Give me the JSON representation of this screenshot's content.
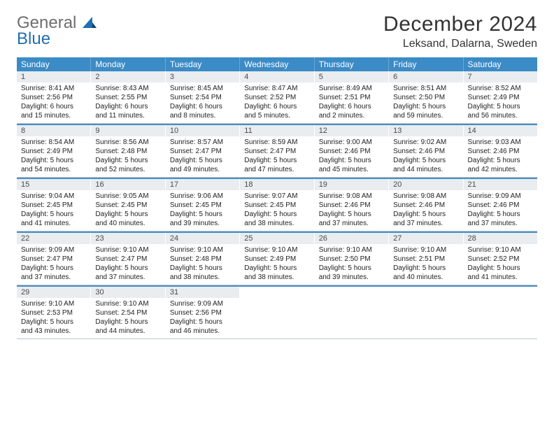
{
  "logo": {
    "line1": "General",
    "line2": "Blue"
  },
  "title": "December 2024",
  "location": "Leksand, Dalarna, Sweden",
  "styles": {
    "header_bg": "#3b8bc6",
    "header_text": "#ffffff",
    "row_sep": "#4a8fc3",
    "daynum_bg": "#e9edf0",
    "daynum_text": "#4a4a4a",
    "body_text": "#222222",
    "page_bg": "#ffffff",
    "title_fontsize": 30,
    "location_fontsize": 16,
    "dow_fontsize": 12,
    "daynum_fontsize": 11,
    "body_fontsize": 10
  },
  "daysOfWeek": [
    "Sunday",
    "Monday",
    "Tuesday",
    "Wednesday",
    "Thursday",
    "Friday",
    "Saturday"
  ],
  "weeks": [
    [
      {
        "n": "1",
        "sunrise": "Sunrise: 8:41 AM",
        "sunset": "Sunset: 2:56 PM",
        "daylight": "Daylight: 6 hours and 15 minutes."
      },
      {
        "n": "2",
        "sunrise": "Sunrise: 8:43 AM",
        "sunset": "Sunset: 2:55 PM",
        "daylight": "Daylight: 6 hours and 11 minutes."
      },
      {
        "n": "3",
        "sunrise": "Sunrise: 8:45 AM",
        "sunset": "Sunset: 2:54 PM",
        "daylight": "Daylight: 6 hours and 8 minutes."
      },
      {
        "n": "4",
        "sunrise": "Sunrise: 8:47 AM",
        "sunset": "Sunset: 2:52 PM",
        "daylight": "Daylight: 6 hours and 5 minutes."
      },
      {
        "n": "5",
        "sunrise": "Sunrise: 8:49 AM",
        "sunset": "Sunset: 2:51 PM",
        "daylight": "Daylight: 6 hours and 2 minutes."
      },
      {
        "n": "6",
        "sunrise": "Sunrise: 8:51 AM",
        "sunset": "Sunset: 2:50 PM",
        "daylight": "Daylight: 5 hours and 59 minutes."
      },
      {
        "n": "7",
        "sunrise": "Sunrise: 8:52 AM",
        "sunset": "Sunset: 2:49 PM",
        "daylight": "Daylight: 5 hours and 56 minutes."
      }
    ],
    [
      {
        "n": "8",
        "sunrise": "Sunrise: 8:54 AM",
        "sunset": "Sunset: 2:49 PM",
        "daylight": "Daylight: 5 hours and 54 minutes."
      },
      {
        "n": "9",
        "sunrise": "Sunrise: 8:56 AM",
        "sunset": "Sunset: 2:48 PM",
        "daylight": "Daylight: 5 hours and 52 minutes."
      },
      {
        "n": "10",
        "sunrise": "Sunrise: 8:57 AM",
        "sunset": "Sunset: 2:47 PM",
        "daylight": "Daylight: 5 hours and 49 minutes."
      },
      {
        "n": "11",
        "sunrise": "Sunrise: 8:59 AM",
        "sunset": "Sunset: 2:47 PM",
        "daylight": "Daylight: 5 hours and 47 minutes."
      },
      {
        "n": "12",
        "sunrise": "Sunrise: 9:00 AM",
        "sunset": "Sunset: 2:46 PM",
        "daylight": "Daylight: 5 hours and 45 minutes."
      },
      {
        "n": "13",
        "sunrise": "Sunrise: 9:02 AM",
        "sunset": "Sunset: 2:46 PM",
        "daylight": "Daylight: 5 hours and 44 minutes."
      },
      {
        "n": "14",
        "sunrise": "Sunrise: 9:03 AM",
        "sunset": "Sunset: 2:46 PM",
        "daylight": "Daylight: 5 hours and 42 minutes."
      }
    ],
    [
      {
        "n": "15",
        "sunrise": "Sunrise: 9:04 AM",
        "sunset": "Sunset: 2:45 PM",
        "daylight": "Daylight: 5 hours and 41 minutes."
      },
      {
        "n": "16",
        "sunrise": "Sunrise: 9:05 AM",
        "sunset": "Sunset: 2:45 PM",
        "daylight": "Daylight: 5 hours and 40 minutes."
      },
      {
        "n": "17",
        "sunrise": "Sunrise: 9:06 AM",
        "sunset": "Sunset: 2:45 PM",
        "daylight": "Daylight: 5 hours and 39 minutes."
      },
      {
        "n": "18",
        "sunrise": "Sunrise: 9:07 AM",
        "sunset": "Sunset: 2:45 PM",
        "daylight": "Daylight: 5 hours and 38 minutes."
      },
      {
        "n": "19",
        "sunrise": "Sunrise: 9:08 AM",
        "sunset": "Sunset: 2:46 PM",
        "daylight": "Daylight: 5 hours and 37 minutes."
      },
      {
        "n": "20",
        "sunrise": "Sunrise: 9:08 AM",
        "sunset": "Sunset: 2:46 PM",
        "daylight": "Daylight: 5 hours and 37 minutes."
      },
      {
        "n": "21",
        "sunrise": "Sunrise: 9:09 AM",
        "sunset": "Sunset: 2:46 PM",
        "daylight": "Daylight: 5 hours and 37 minutes."
      }
    ],
    [
      {
        "n": "22",
        "sunrise": "Sunrise: 9:09 AM",
        "sunset": "Sunset: 2:47 PM",
        "daylight": "Daylight: 5 hours and 37 minutes."
      },
      {
        "n": "23",
        "sunrise": "Sunrise: 9:10 AM",
        "sunset": "Sunset: 2:47 PM",
        "daylight": "Daylight: 5 hours and 37 minutes."
      },
      {
        "n": "24",
        "sunrise": "Sunrise: 9:10 AM",
        "sunset": "Sunset: 2:48 PM",
        "daylight": "Daylight: 5 hours and 38 minutes."
      },
      {
        "n": "25",
        "sunrise": "Sunrise: 9:10 AM",
        "sunset": "Sunset: 2:49 PM",
        "daylight": "Daylight: 5 hours and 38 minutes."
      },
      {
        "n": "26",
        "sunrise": "Sunrise: 9:10 AM",
        "sunset": "Sunset: 2:50 PM",
        "daylight": "Daylight: 5 hours and 39 minutes."
      },
      {
        "n": "27",
        "sunrise": "Sunrise: 9:10 AM",
        "sunset": "Sunset: 2:51 PM",
        "daylight": "Daylight: 5 hours and 40 minutes."
      },
      {
        "n": "28",
        "sunrise": "Sunrise: 9:10 AM",
        "sunset": "Sunset: 2:52 PM",
        "daylight": "Daylight: 5 hours and 41 minutes."
      }
    ],
    [
      {
        "n": "29",
        "sunrise": "Sunrise: 9:10 AM",
        "sunset": "Sunset: 2:53 PM",
        "daylight": "Daylight: 5 hours and 43 minutes."
      },
      {
        "n": "30",
        "sunrise": "Sunrise: 9:10 AM",
        "sunset": "Sunset: 2:54 PM",
        "daylight": "Daylight: 5 hours and 44 minutes."
      },
      {
        "n": "31",
        "sunrise": "Sunrise: 9:09 AM",
        "sunset": "Sunset: 2:56 PM",
        "daylight": "Daylight: 5 hours and 46 minutes."
      },
      null,
      null,
      null,
      null
    ]
  ]
}
